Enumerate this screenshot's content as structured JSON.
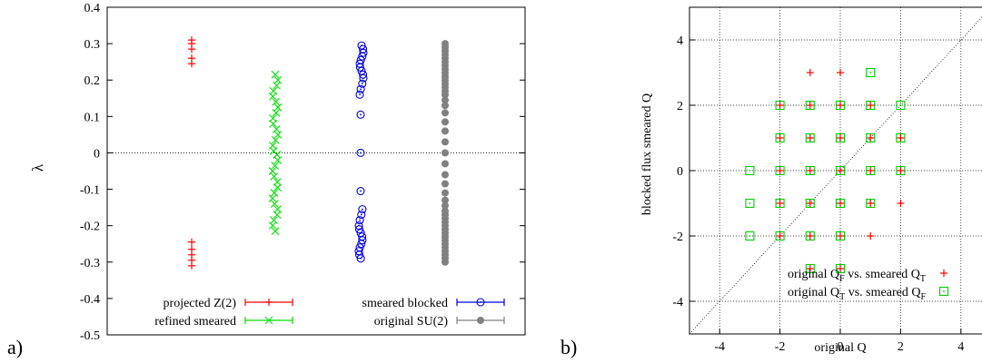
{
  "panel_labels": {
    "a": "a)",
    "b": "b)"
  },
  "chart_data": [
    {
      "type": "scatter",
      "title": "",
      "xlabel": "",
      "ylabel": "λ",
      "ylim": [
        -0.5,
        0.4
      ],
      "yticks": [
        0.4,
        0.3,
        0.2,
        0.1,
        0,
        -0.1,
        -0.2,
        -0.3,
        -0.4,
        -0.5
      ],
      "ytick_labels": [
        "0.4",
        "0.3",
        "0.2",
        "0.1",
        "0",
        "-0.1",
        "-0.2",
        "-0.3",
        "-0.4",
        "-0.5"
      ],
      "grid": false,
      "zero_line": true,
      "legend": "bottom",
      "series": [
        {
          "name": "projected Z(2)",
          "marker": "plus",
          "color": "#ff0000",
          "values": [
            0.31,
            0.3,
            0.285,
            0.26,
            0.245,
            -0.245,
            -0.265,
            -0.28,
            -0.295,
            -0.31
          ]
        },
        {
          "name": "refined smeared",
          "marker": "cross",
          "color": "#00dd00",
          "values": [
            0.215,
            0.2,
            0.185,
            0.17,
            0.155,
            0.14,
            0.125,
            0.11,
            0.095,
            0.08,
            0.065,
            0.05,
            0.035,
            0.02,
            0.005,
            -0.005,
            -0.02,
            -0.035,
            -0.05,
            -0.065,
            -0.08,
            -0.095,
            -0.11,
            -0.125,
            -0.14,
            -0.155,
            -0.17,
            -0.185,
            -0.2,
            -0.215
          ]
        },
        {
          "name": "smeared blocked",
          "marker": "circle-open",
          "color": "#0000dd",
          "values": [
            0.295,
            0.285,
            0.275,
            0.265,
            0.255,
            0.245,
            0.235,
            0.225,
            0.215,
            0.205,
            0.19,
            0.175,
            0.16,
            0.105,
            0,
            -0.105,
            -0.155,
            -0.17,
            -0.185,
            -0.2,
            -0.21,
            -0.22,
            -0.23,
            -0.24,
            -0.25,
            -0.26,
            -0.27,
            -0.28,
            -0.29
          ]
        },
        {
          "name": "original SU(2)",
          "marker": "circle-filled",
          "color": "#808080",
          "values": [
            0.3,
            0.29,
            0.28,
            0.27,
            0.26,
            0.25,
            0.24,
            0.23,
            0.22,
            0.21,
            0.2,
            0.19,
            0.18,
            0.17,
            0.16,
            0.145,
            0.13,
            0.11,
            0.085,
            0.06,
            0.03,
            0,
            -0.03,
            -0.06,
            -0.085,
            -0.11,
            -0.13,
            -0.145,
            -0.16,
            -0.17,
            -0.18,
            -0.19,
            -0.2,
            -0.21,
            -0.22,
            -0.23,
            -0.24,
            -0.25,
            -0.26,
            -0.27,
            -0.28,
            -0.29,
            -0.3
          ]
        }
      ]
    },
    {
      "type": "scatter",
      "title": "",
      "xlabel": "original Q",
      "ylabel": "blocked flux smeared Q",
      "xlim": [
        -5,
        5
      ],
      "ylim": [
        -5,
        5
      ],
      "xticks": [
        -4,
        -2,
        0,
        2,
        4
      ],
      "xtick_labels": [
        "-4",
        "-2",
        "0",
        "2",
        "4"
      ],
      "yticks": [
        -4,
        -2,
        0,
        2,
        4
      ],
      "ytick_labels": [
        "-4",
        "-2",
        "0",
        "2",
        "4"
      ],
      "grid": true,
      "diagonal": true,
      "legend": "bottom-right",
      "series": [
        {
          "name_main": "original Q",
          "name_sub1": "F",
          "name_mid": " vs. smeared Q",
          "name_sub2": "T",
          "marker": "plus",
          "color": "#ff0000",
          "points": [
            [
              -1,
              3
            ],
            [
              0,
              3
            ],
            [
              -2,
              2
            ],
            [
              -1,
              2
            ],
            [
              0,
              2
            ],
            [
              1,
              2
            ],
            [
              -2,
              1
            ],
            [
              -1,
              1
            ],
            [
              0,
              1
            ],
            [
              1,
              1
            ],
            [
              2,
              1
            ],
            [
              -2,
              0
            ],
            [
              -1,
              0
            ],
            [
              0,
              0
            ],
            [
              1,
              0
            ],
            [
              2,
              0
            ],
            [
              -2,
              -1
            ],
            [
              -1,
              -1
            ],
            [
              0,
              -1
            ],
            [
              1,
              -1
            ],
            [
              2,
              -1
            ],
            [
              -2,
              -2
            ],
            [
              -1,
              -2
            ],
            [
              0,
              -2
            ],
            [
              1,
              -2
            ],
            [
              -1,
              -3
            ],
            [
              0,
              -3
            ]
          ]
        },
        {
          "name_main": "original Q",
          "name_sub1": "T",
          "name_mid": " vs. smeared Q",
          "name_sub2": "F",
          "marker": "square-dot",
          "color": "#00cc00",
          "points": [
            [
              1,
              3
            ],
            [
              -2,
              2
            ],
            [
              -1,
              2
            ],
            [
              0,
              2
            ],
            [
              1,
              2
            ],
            [
              2,
              2
            ],
            [
              -2,
              1
            ],
            [
              -1,
              1
            ],
            [
              0,
              1
            ],
            [
              1,
              1
            ],
            [
              2,
              1
            ],
            [
              -3,
              0
            ],
            [
              -2,
              0
            ],
            [
              -1,
              0
            ],
            [
              0,
              0
            ],
            [
              1,
              0
            ],
            [
              2,
              0
            ],
            [
              -3,
              -1
            ],
            [
              -2,
              -1
            ],
            [
              -1,
              -1
            ],
            [
              0,
              -1
            ],
            [
              1,
              -1
            ],
            [
              -3,
              -2
            ],
            [
              -2,
              -2
            ],
            [
              -1,
              -2
            ],
            [
              0,
              -2
            ],
            [
              -1,
              -3
            ],
            [
              0,
              -3
            ]
          ]
        }
      ]
    }
  ]
}
